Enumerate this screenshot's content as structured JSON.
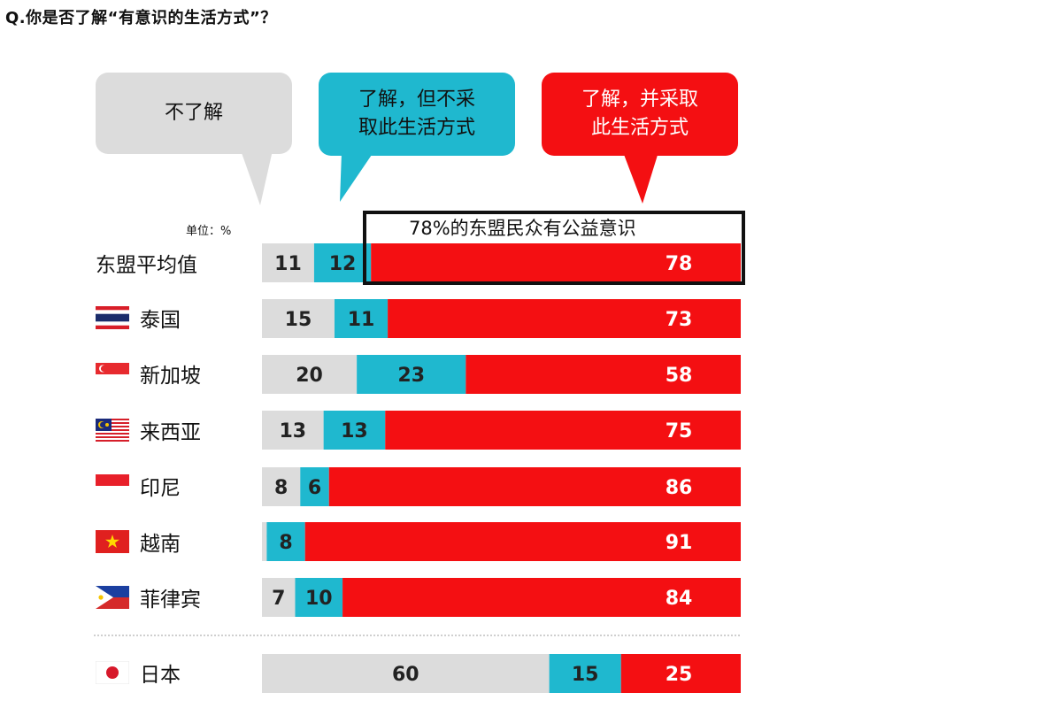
{
  "question": "Q.你是否了解“有意识的生活方式”？",
  "unit": "单位：%",
  "callout": "78%的东盟民众有公益意识",
  "colors": {
    "gray": "#dcdcdc",
    "teal": "#1fb8cf",
    "red": "#f40f12"
  },
  "chart_data": {
    "type": "bar",
    "orientation": "horizontal-stacked",
    "unit": "%",
    "categories": [
      "东盟平均值",
      "泰国",
      "新加坡",
      "来西亚",
      "印尼",
      "越南",
      "菲律宾",
      "日本"
    ],
    "series": [
      {
        "name": "不了解",
        "color": "#dcdcdc",
        "values": [
          11,
          15,
          20,
          13,
          8,
          1,
          7,
          60
        ]
      },
      {
        "name": "了解，但不采\n取此生活方式",
        "color": "#1fb8cf",
        "values": [
          12,
          11,
          23,
          13,
          6,
          8,
          10,
          15
        ]
      },
      {
        "name": "了解，并采取\n此生活方式",
        "color": "#f40f12",
        "values": [
          78,
          73,
          58,
          75,
          86,
          91,
          84,
          25
        ]
      }
    ],
    "flags": [
      "",
      "thailand-flag",
      "singapore-flag",
      "malaysia-flag",
      "indonesia-flag",
      "vietnam-flag",
      "philippines-flag",
      "japan-flag"
    ]
  }
}
